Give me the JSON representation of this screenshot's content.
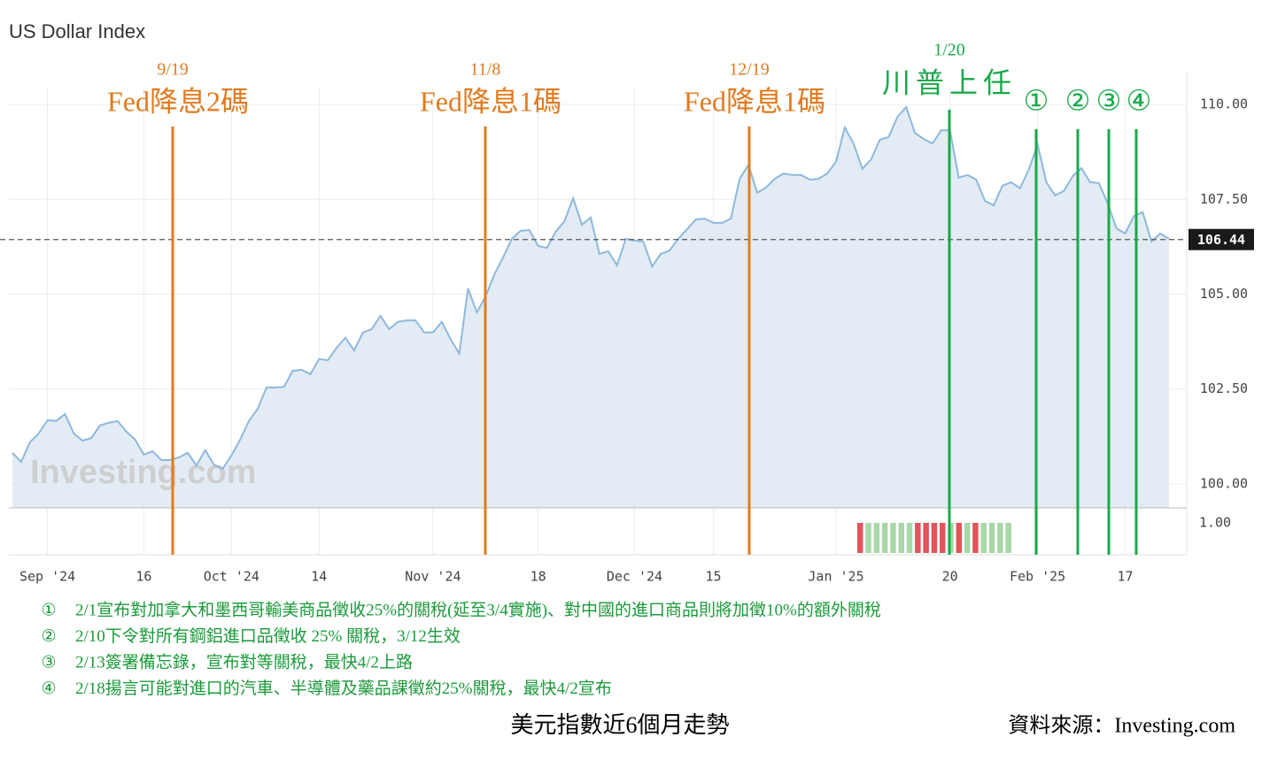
{
  "chart_data": {
    "type": "line",
    "title": "US Dollar Index",
    "watermark": "Investing.com",
    "categories": [
      null,
      null,
      null,
      null,
      "Sep '24",
      null,
      null,
      null,
      null,
      null,
      null,
      null,
      null,
      null,
      null,
      "16",
      null,
      null,
      null,
      null,
      null,
      null,
      null,
      null,
      null,
      "Oct '24",
      null,
      null,
      null,
      null,
      null,
      null,
      null,
      null,
      null,
      "14",
      null,
      null,
      null,
      null,
      null,
      null,
      null,
      null,
      null,
      null,
      null,
      null,
      "Nov '24",
      null,
      null,
      null,
      null,
      null,
      null,
      null,
      null,
      null,
      null,
      null,
      "18",
      null,
      null,
      null,
      null,
      null,
      null,
      null,
      null,
      null,
      null,
      "Dec '24",
      null,
      null,
      null,
      null,
      null,
      null,
      null,
      null,
      "15",
      null,
      null,
      null,
      null,
      null,
      null,
      null,
      null,
      null,
      null,
      null,
      null,
      null,
      "Jan '25",
      null,
      null,
      null,
      null,
      null,
      null,
      null,
      null,
      null,
      null,
      null,
      null,
      "20",
      null,
      null,
      null,
      null,
      null,
      null,
      null,
      null,
      null,
      "Feb '25",
      null,
      null,
      null,
      null,
      null,
      null,
      null,
      null,
      null,
      "17",
      null,
      null,
      null,
      null,
      null
    ],
    "values": [
      100.82,
      100.58,
      101.1,
      101.33,
      101.68,
      101.66,
      101.84,
      101.33,
      101.14,
      101.21,
      101.54,
      101.61,
      101.66,
      101.38,
      101.17,
      100.77,
      100.86,
      100.63,
      100.63,
      100.7,
      100.82,
      100.49,
      100.89,
      100.51,
      100.4,
      100.75,
      101.17,
      101.66,
      101.98,
      102.54,
      102.54,
      102.56,
      102.98,
      103.01,
      102.89,
      103.29,
      103.26,
      103.59,
      103.85,
      103.52,
      103.99,
      104.08,
      104.43,
      104.08,
      104.27,
      104.31,
      104.31,
      103.99,
      103.99,
      104.27,
      103.82,
      103.43,
      105.15,
      104.52,
      104.94,
      105.52,
      105.97,
      106.46,
      106.67,
      106.69,
      106.27,
      106.22,
      106.64,
      106.92,
      107.53,
      106.83,
      107.02,
      106.06,
      106.13,
      105.76,
      106.46,
      106.41,
      106.39,
      105.73,
      106.06,
      106.15,
      106.46,
      106.71,
      106.97,
      106.99,
      106.88,
      106.88,
      106.99,
      108.04,
      108.41,
      107.67,
      107.81,
      108.04,
      108.18,
      108.14,
      108.14,
      108.02,
      108.04,
      108.18,
      108.49,
      109.39,
      108.97,
      108.3,
      108.55,
      109.07,
      109.14,
      109.67,
      109.93,
      109.25,
      109.09,
      108.97,
      109.32,
      109.32,
      108.07,
      108.14,
      108.02,
      107.46,
      107.34,
      107.86,
      107.95,
      107.79,
      108.28,
      108.95,
      107.95,
      107.6,
      107.72,
      108.11,
      108.32,
      107.95,
      107.93,
      107.39,
      106.74,
      106.6,
      107.06,
      107.16,
      106.39,
      106.6,
      106.46
    ],
    "color": "#8fb8dc",
    "fill": "#e3ecf4",
    "ylim": [
      99.37,
      110.42
    ],
    "yticks": [
      {
        "value": 100,
        "label": "100.00"
      },
      {
        "value": 102.5,
        "label": "102.50"
      },
      {
        "value": 105,
        "label": "105.00"
      },
      {
        "value": 107.5,
        "label": "107.50"
      },
      {
        "value": 110,
        "label": "110.00"
      }
    ],
    "grid": true,
    "last_value": 106.44,
    "lower_pane": {
      "yticks": [
        {
          "value": 1,
          "label": "1.00"
        }
      ]
    },
    "annotations": [
      {
        "date": "9/19",
        "text": "Fed降息2碼",
        "color": "#e07b20"
      },
      {
        "date": "11/8",
        "text": "Fed降息1碼",
        "color": "#e07b20"
      },
      {
        "date": "12/19",
        "text": "Fed降息1碼",
        "color": "#e07b20"
      },
      {
        "date": "1/20",
        "text": "川普上任",
        "color": "#1aa84a"
      },
      {
        "text": "①",
        "color": "#1aa84a"
      },
      {
        "text": "②",
        "color": "#1aa84a"
      },
      {
        "text": "③",
        "color": "#1aa84a"
      },
      {
        "text": "④",
        "color": "#1aa84a"
      }
    ],
    "notes": [
      {
        "marker": "①",
        "text": "2/1宣布對加拿大和墨西哥輸美商品徵收25%的關稅(延至3/4實施)、對中國的進口商品則將加徵10%的額外關稅"
      },
      {
        "marker": "②",
        "text": "2/10下令對所有鋼鋁進口品徵收 25% 關稅，3/12生效"
      },
      {
        "marker": "③",
        "text": "2/13簽署備忘錄，宣布對等關稅，最快4/2上路"
      },
      {
        "marker": "④",
        "text": "2/18揚言可能對進口的汽車、半導體及藥品課徵約25%關稅，最快4/2宣布"
      }
    ],
    "caption": "美元指數近6個月走勢",
    "source": "資料來源：Investing.com"
  }
}
